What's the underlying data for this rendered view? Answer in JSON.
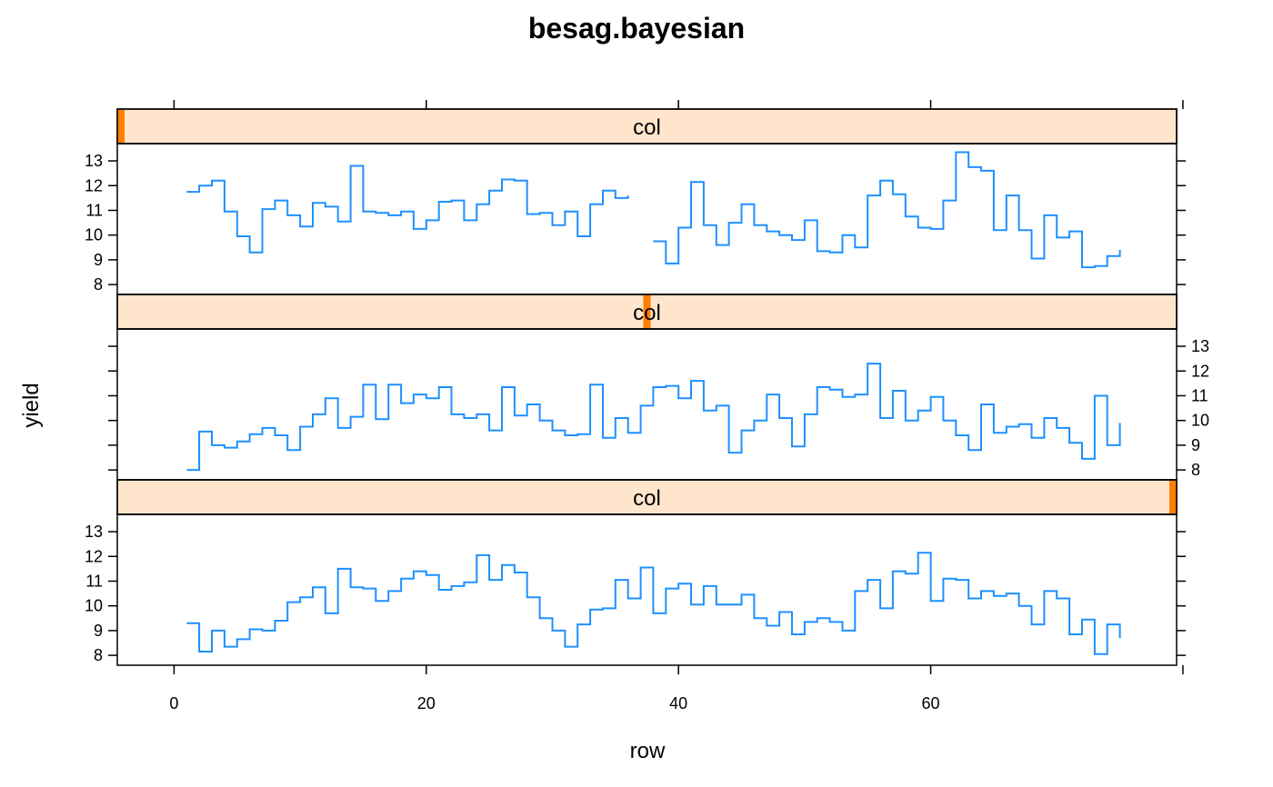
{
  "chart_data": {
    "type": "line",
    "style": "step",
    "title": "besag.bayesian",
    "xlabel": "row",
    "ylabel": "yield",
    "xlim": [
      -4.5,
      79.5
    ],
    "ylim": [
      7.6,
      13.7
    ],
    "x_ticks": [
      0,
      20,
      40,
      60
    ],
    "y_ticks": [
      8,
      9,
      10,
      11,
      12,
      13
    ],
    "strip_color": "#ffe5cc",
    "strip_marker_color": "#ff7f00",
    "line_color": "#1e90ff",
    "panels": [
      {
        "strip_label": "col",
        "level_marker": 3,
        "y_axis_side": "left",
        "x": [
          1,
          2,
          3,
          4,
          5,
          6,
          7,
          8,
          9,
          10,
          11,
          12,
          13,
          14,
          15,
          16,
          17,
          18,
          19,
          20,
          21,
          22,
          23,
          24,
          25,
          26,
          27,
          28,
          29,
          30,
          31,
          32,
          33,
          34,
          35,
          36,
          37,
          38,
          39,
          40,
          41,
          42,
          43,
          44,
          45,
          46,
          47,
          48,
          49,
          50,
          51,
          52,
          53,
          54,
          55,
          56,
          57,
          58,
          59,
          60,
          61,
          62,
          63,
          64,
          65,
          66,
          67,
          68,
          69,
          70,
          71,
          72,
          73,
          74,
          75
        ],
        "y": [
          9.3,
          8.15,
          9,
          8.35,
          8.65,
          9.05,
          9,
          9.4,
          10.15,
          10.35,
          10.75,
          9.7,
          11.5,
          10.75,
          10.7,
          10.2,
          10.6,
          11.1,
          11.4,
          11.25,
          10.65,
          10.8,
          10.95,
          12.05,
          11.05,
          11.65,
          11.35,
          10.35,
          9.5,
          9,
          8.35,
          9.25,
          9.85,
          9.9,
          11.05,
          10.3,
          11.55,
          9.7,
          10.7,
          10.9,
          10.05,
          10.8,
          10.05,
          10.05,
          10.45,
          9.5,
          9.2,
          9.75,
          8.85,
          9.35,
          9.5,
          9.35,
          9,
          10.6,
          11.05,
          9.9,
          11.4,
          11.3,
          12.15,
          10.2,
          11.1,
          11.05,
          10.3,
          10.6,
          10.4,
          10.5,
          10,
          9.25,
          10.6,
          10.3,
          8.85,
          9.45,
          8.05,
          9.25,
          8.7
        ]
      },
      {
        "strip_label": "col",
        "level_marker": 2,
        "y_axis_side": "right",
        "x": [
          1,
          2,
          3,
          4,
          5,
          6,
          7,
          8,
          9,
          10,
          11,
          12,
          13,
          14,
          15,
          16,
          17,
          18,
          19,
          20,
          21,
          22,
          23,
          24,
          25,
          26,
          27,
          28,
          29,
          30,
          31,
          32,
          33,
          34,
          35,
          36,
          37,
          38,
          39,
          40,
          41,
          42,
          43,
          44,
          45,
          46,
          47,
          48,
          49,
          50,
          51,
          52,
          53,
          54,
          55,
          56,
          57,
          58,
          59,
          60,
          61,
          62,
          63,
          64,
          65,
          66,
          67,
          68,
          69,
          70,
          71,
          72,
          73,
          74,
          75
        ],
        "y": [
          8,
          9.55,
          9,
          8.9,
          9.15,
          9.45,
          9.7,
          9.4,
          8.8,
          9.75,
          10.25,
          10.9,
          9.7,
          10.15,
          11.45,
          10.05,
          11.45,
          10.7,
          11.05,
          10.9,
          11.35,
          10.25,
          10.1,
          10.25,
          9.6,
          11.35,
          10.2,
          10.65,
          10,
          9.6,
          9.4,
          9.45,
          11.45,
          9.3,
          10.1,
          9.5,
          10.6,
          11.35,
          11.4,
          10.9,
          11.6,
          10.4,
          10.6,
          8.7,
          9.6,
          10,
          11.05,
          10.1,
          8.95,
          10.25,
          11.35,
          11.25,
          10.95,
          11.05,
          12.3,
          10.1,
          11.2,
          10,
          10.4,
          10.95,
          10,
          9.4,
          8.8,
          10.65,
          9.5,
          9.75,
          9.85,
          9.3,
          10.1,
          9.7,
          9.1,
          8.45,
          11,
          9,
          9.9
        ]
      },
      {
        "strip_label": "col",
        "level_marker": 1,
        "y_axis_side": "left",
        "x": [
          1,
          2,
          3,
          4,
          5,
          6,
          7,
          8,
          9,
          10,
          11,
          12,
          13,
          14,
          15,
          16,
          17,
          18,
          19,
          20,
          21,
          22,
          23,
          24,
          25,
          26,
          27,
          28,
          29,
          30,
          31,
          32,
          33,
          34,
          35,
          36,
          37,
          38,
          39,
          40,
          41,
          42,
          43,
          44,
          45,
          46,
          47,
          48,
          49,
          50,
          51,
          52,
          53,
          54,
          55,
          56,
          57,
          58,
          59,
          60,
          61,
          62,
          63,
          64,
          65,
          66,
          67,
          68,
          69,
          70,
          71,
          72,
          73,
          74,
          75
        ],
        "y": [
          11.75,
          12,
          12.2,
          10.95,
          9.95,
          9.3,
          11.05,
          11.4,
          10.8,
          10.35,
          11.3,
          11.15,
          10.55,
          12.8,
          10.95,
          10.9,
          10.8,
          10.95,
          10.25,
          10.6,
          11.35,
          11.4,
          10.6,
          11.25,
          11.8,
          12.25,
          12.2,
          10.85,
          10.9,
          10.4,
          10.95,
          9.95,
          11.25,
          11.8,
          11.5,
          11.6,
          null,
          9.75,
          8.85,
          10.3,
          12.15,
          10.4,
          9.6,
          10.5,
          11.25,
          10.4,
          10.15,
          10,
          9.8,
          10.6,
          9.35,
          9.3,
          10,
          9.5,
          11.6,
          12.2,
          11.65,
          10.75,
          10.3,
          10.25,
          11.4,
          13.35,
          12.75,
          12.6,
          10.2,
          11.6,
          10.2,
          9.05,
          10.8,
          9.9,
          10.15,
          8.7,
          8.75,
          9.15,
          9.4
        ]
      }
    ]
  }
}
